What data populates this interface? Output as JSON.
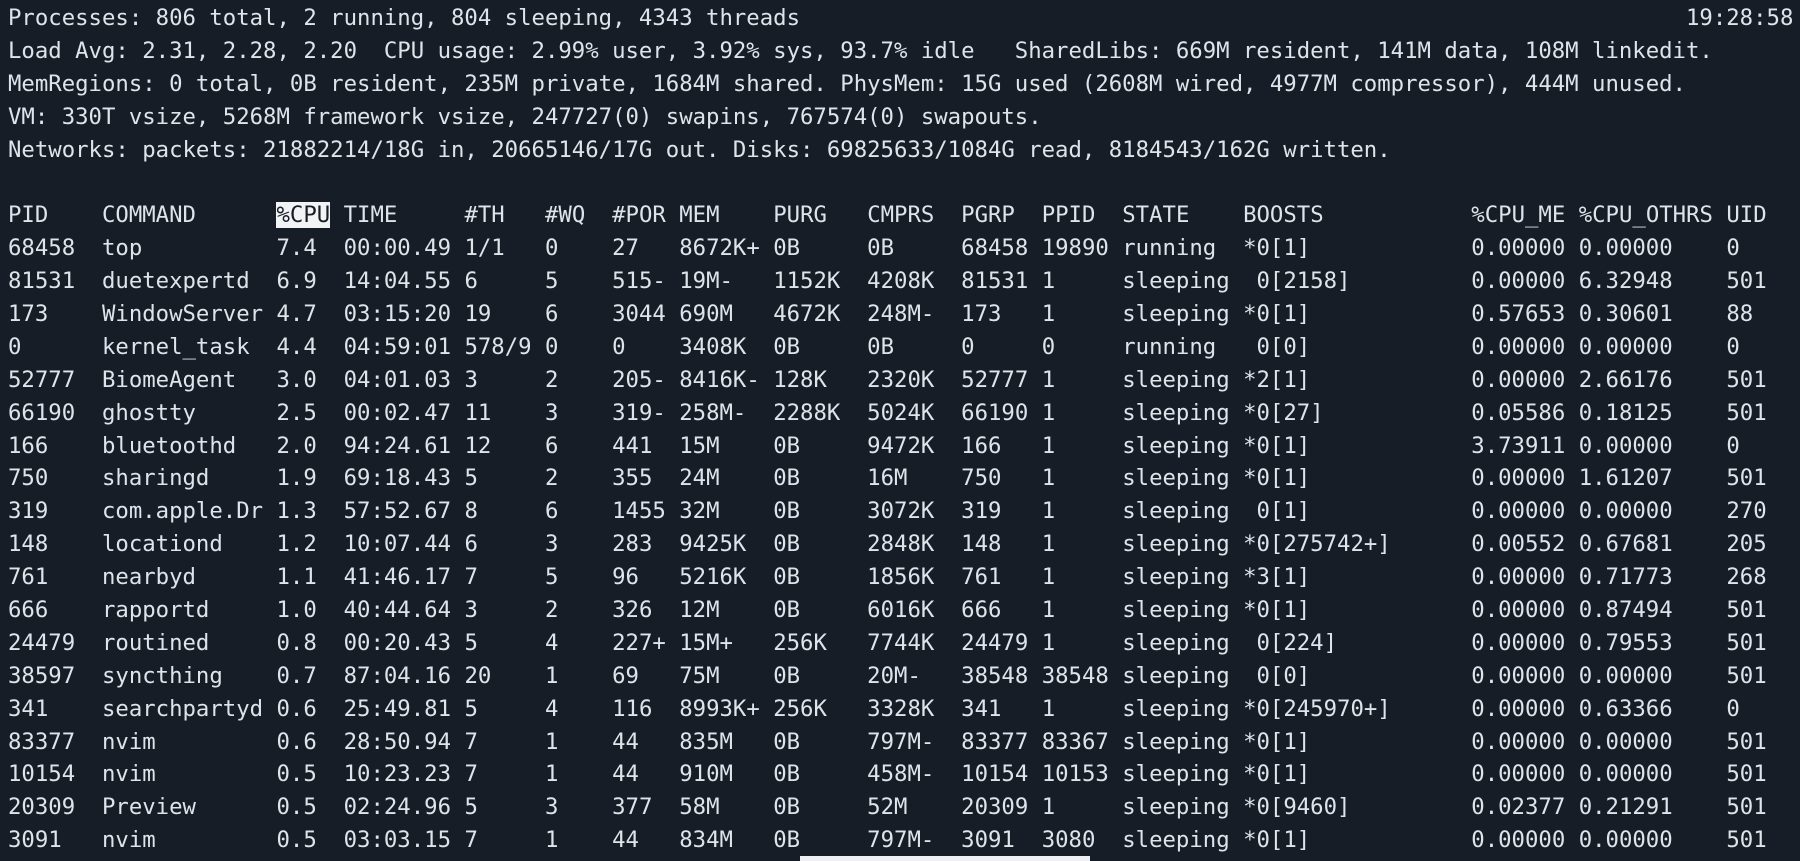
{
  "theme": {
    "background": "#171d27",
    "foreground": "#dfe3ea",
    "highlight_bg": "#f2f3f5",
    "highlight_fg": "#171d27"
  },
  "terminal": {
    "cols": 133,
    "clock": "19:28:58",
    "summary_lines": [
      "Processes: 806 total, 2 running, 804 sleeping, 4343 threads",
      "Load Avg: 2.31, 2.28, 2.20  CPU usage: 2.99% user, 3.92% sys, 93.7% idle   SharedLibs: 669M resident, 141M data, 108M linkedit.",
      "MemRegions: 0 total, 0B resident, 235M private, 1684M shared. PhysMem: 15G used (2608M wired, 4977M compressor), 444M unused.",
      "VM: 330T vsize, 5268M framework vsize, 247727(0) swapins, 767574(0) swapouts.",
      "Networks: packets: 21882214/18G in, 20665146/17G out. Disks: 69825633/1084G read, 8184543/162G written."
    ],
    "process_table": {
      "sort_column": "%CPU",
      "columns": [
        {
          "key": "pid",
          "label": "PID",
          "width": 7,
          "highlighted": false
        },
        {
          "key": "command",
          "label": "COMMAND",
          "width": 13,
          "highlighted": false
        },
        {
          "key": "cpu",
          "label": "%CPU",
          "width": 5,
          "highlighted": true
        },
        {
          "key": "time",
          "label": "TIME",
          "width": 9,
          "highlighted": false
        },
        {
          "key": "th",
          "label": "#TH",
          "width": 6,
          "highlighted": false
        },
        {
          "key": "wq",
          "label": "#WQ",
          "width": 5,
          "highlighted": false
        },
        {
          "key": "por",
          "label": "#POR",
          "width": 5,
          "highlighted": false
        },
        {
          "key": "mem",
          "label": "MEM",
          "width": 7,
          "highlighted": false
        },
        {
          "key": "purg",
          "label": "PURG",
          "width": 7,
          "highlighted": false
        },
        {
          "key": "cmprs",
          "label": "CMPRS",
          "width": 7,
          "highlighted": false
        },
        {
          "key": "pgrp",
          "label": "PGRP",
          "width": 6,
          "highlighted": false
        },
        {
          "key": "ppid",
          "label": "PPID",
          "width": 6,
          "highlighted": false
        },
        {
          "key": "state",
          "label": "STATE",
          "width": 9,
          "highlighted": false
        },
        {
          "key": "boosts",
          "label": "BOOSTS",
          "width": 17,
          "highlighted": false
        },
        {
          "key": "cpu_me",
          "label": "%CPU_ME",
          "width": 8,
          "highlighted": false
        },
        {
          "key": "cpu_othrs",
          "label": "%CPU_OTHRS",
          "width": 11,
          "highlighted": false
        },
        {
          "key": "uid",
          "label": "UID",
          "width": 3,
          "highlighted": false
        }
      ],
      "rows": [
        [
          "68458",
          "top",
          "7.4",
          "00:00.49",
          "1/1",
          "0",
          "27",
          "8672K+",
          "0B",
          "0B",
          "68458",
          "19890",
          "running",
          "*0[1]",
          "0.00000",
          "0.00000",
          "0"
        ],
        [
          "81531",
          "duetexpertd",
          "6.9",
          "14:04.55",
          "6",
          "5",
          "515-",
          "19M-",
          "1152K",
          "4208K",
          "81531",
          "1",
          "sleeping",
          " 0[2158]",
          "0.00000",
          "6.32948",
          "501"
        ],
        [
          "173",
          "WindowServer",
          "4.7",
          "03:15:20",
          "19",
          "6",
          "3044",
          "690M",
          "4672K",
          "248M-",
          "173",
          "1",
          "sleeping",
          "*0[1]",
          "0.57653",
          "0.30601",
          "88"
        ],
        [
          "0",
          "kernel_task",
          "4.4",
          "04:59:01",
          "578/9",
          "0",
          "0",
          "3408K",
          "0B",
          "0B",
          "0",
          "0",
          "running",
          " 0[0]",
          "0.00000",
          "0.00000",
          "0"
        ],
        [
          "52777",
          "BiomeAgent",
          "3.0",
          "04:01.03",
          "3",
          "2",
          "205-",
          "8416K-",
          "128K",
          "2320K",
          "52777",
          "1",
          "sleeping",
          "*2[1]",
          "0.00000",
          "2.66176",
          "501"
        ],
        [
          "66190",
          "ghostty",
          "2.5",
          "00:02.47",
          "11",
          "3",
          "319-",
          "258M-",
          "2288K",
          "5024K",
          "66190",
          "1",
          "sleeping",
          "*0[27]",
          "0.05586",
          "0.18125",
          "501"
        ],
        [
          "166",
          "bluetoothd",
          "2.0",
          "94:24.61",
          "12",
          "6",
          "441",
          "15M",
          "0B",
          "9472K",
          "166",
          "1",
          "sleeping",
          "*0[1]",
          "3.73911",
          "0.00000",
          "0"
        ],
        [
          "750",
          "sharingd",
          "1.9",
          "69:18.43",
          "5",
          "2",
          "355",
          "24M",
          "0B",
          "16M",
          "750",
          "1",
          "sleeping",
          "*0[1]",
          "0.00000",
          "1.61207",
          "501"
        ],
        [
          "319",
          "com.apple.Dr",
          "1.3",
          "57:52.67",
          "8",
          "6",
          "1455",
          "32M",
          "0B",
          "3072K",
          "319",
          "1",
          "sleeping",
          " 0[1]",
          "0.00000",
          "0.00000",
          "270"
        ],
        [
          "148",
          "locationd",
          "1.2",
          "10:07.44",
          "6",
          "3",
          "283",
          "9425K",
          "0B",
          "2848K",
          "148",
          "1",
          "sleeping",
          "*0[275742+]",
          "0.00552",
          "0.67681",
          "205"
        ],
        [
          "761",
          "nearbyd",
          "1.1",
          "41:46.17",
          "7",
          "5",
          "96",
          "5216K",
          "0B",
          "1856K",
          "761",
          "1",
          "sleeping",
          "*3[1]",
          "0.00000",
          "0.71773",
          "268"
        ],
        [
          "666",
          "rapportd",
          "1.0",
          "40:44.64",
          "3",
          "2",
          "326",
          "12M",
          "0B",
          "6016K",
          "666",
          "1",
          "sleeping",
          "*0[1]",
          "0.00000",
          "0.87494",
          "501"
        ],
        [
          "24479",
          "routined",
          "0.8",
          "00:20.43",
          "5",
          "4",
          "227+",
          "15M+",
          "256K",
          "7744K",
          "24479",
          "1",
          "sleeping",
          " 0[224]",
          "0.00000",
          "0.79553",
          "501"
        ],
        [
          "38597",
          "syncthing",
          "0.7",
          "87:04.16",
          "20",
          "1",
          "69",
          "75M",
          "0B",
          "20M-",
          "38548",
          "38548",
          "sleeping",
          " 0[0]",
          "0.00000",
          "0.00000",
          "501"
        ],
        [
          "341",
          "searchpartyd",
          "0.6",
          "25:49.81",
          "5",
          "4",
          "116",
          "8993K+",
          "256K",
          "3328K",
          "341",
          "1",
          "sleeping",
          "*0[245970+]",
          "0.00000",
          "0.63366",
          "0"
        ],
        [
          "83377",
          "nvim",
          "0.6",
          "28:50.94",
          "7",
          "1",
          "44",
          "835M",
          "0B",
          "797M-",
          "83377",
          "83367",
          "sleeping",
          "*0[1]",
          "0.00000",
          "0.00000",
          "501"
        ],
        [
          "10154",
          "nvim",
          "0.5",
          "10:23.23",
          "7",
          "1",
          "44",
          "910M",
          "0B",
          "458M-",
          "10154",
          "10153",
          "sleeping",
          "*0[1]",
          "0.00000",
          "0.00000",
          "501"
        ],
        [
          "20309",
          "Preview",
          "0.5",
          "02:24.96",
          "5",
          "3",
          "377",
          "58M",
          "0B",
          "52M",
          "20309",
          "1",
          "sleeping",
          "*0[9460]",
          "0.02377",
          "0.21291",
          "501"
        ],
        [
          "3091",
          "nvim",
          "0.5",
          "03:03.15",
          "7",
          "1",
          "44",
          "834M",
          "0B",
          "797M-",
          "3091",
          "3080",
          "sleeping",
          "*0[1]",
          "0.00000",
          "0.00000",
          "501"
        ]
      ]
    }
  }
}
